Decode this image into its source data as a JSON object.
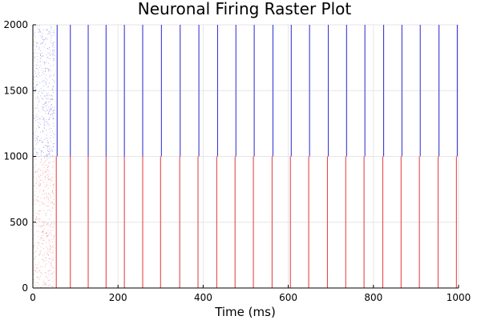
{
  "chart_data": {
    "type": "scatter",
    "title": "Neuronal Firing Raster Plot",
    "xlabel": "Time (ms)",
    "ylabel": "",
    "xlim": [
      0,
      1000
    ],
    "ylim": [
      0,
      2000
    ],
    "xticks": [
      0,
      200,
      400,
      600,
      800,
      1000
    ],
    "yticks": [
      0,
      500,
      1000,
      1500,
      2000
    ],
    "grid": true,
    "legend": "none",
    "series": [
      {
        "color": "#e8474b",
        "neuron_range": [
          0,
          1000
        ],
        "initial_scattered_spikes_time_range": [
          0,
          50
        ],
        "synchronized_burst_times": [
          55,
          88,
          130,
          172,
          215,
          258,
          300,
          345,
          388,
          432,
          475,
          518,
          562,
          605,
          648,
          692,
          735,
          778,
          822,
          865,
          908,
          952,
          995
        ]
      },
      {
        "color": "#3a3ad6",
        "neuron_range": [
          1000,
          2000
        ],
        "initial_scattered_spikes_time_range": [
          0,
          50
        ],
        "synchronized_burst_times": [
          57,
          88,
          130,
          172,
          215,
          258,
          302,
          346,
          390,
          434,
          477,
          520,
          564,
          607,
          650,
          694,
          737,
          780,
          824,
          867,
          910,
          954,
          997
        ]
      }
    ]
  }
}
